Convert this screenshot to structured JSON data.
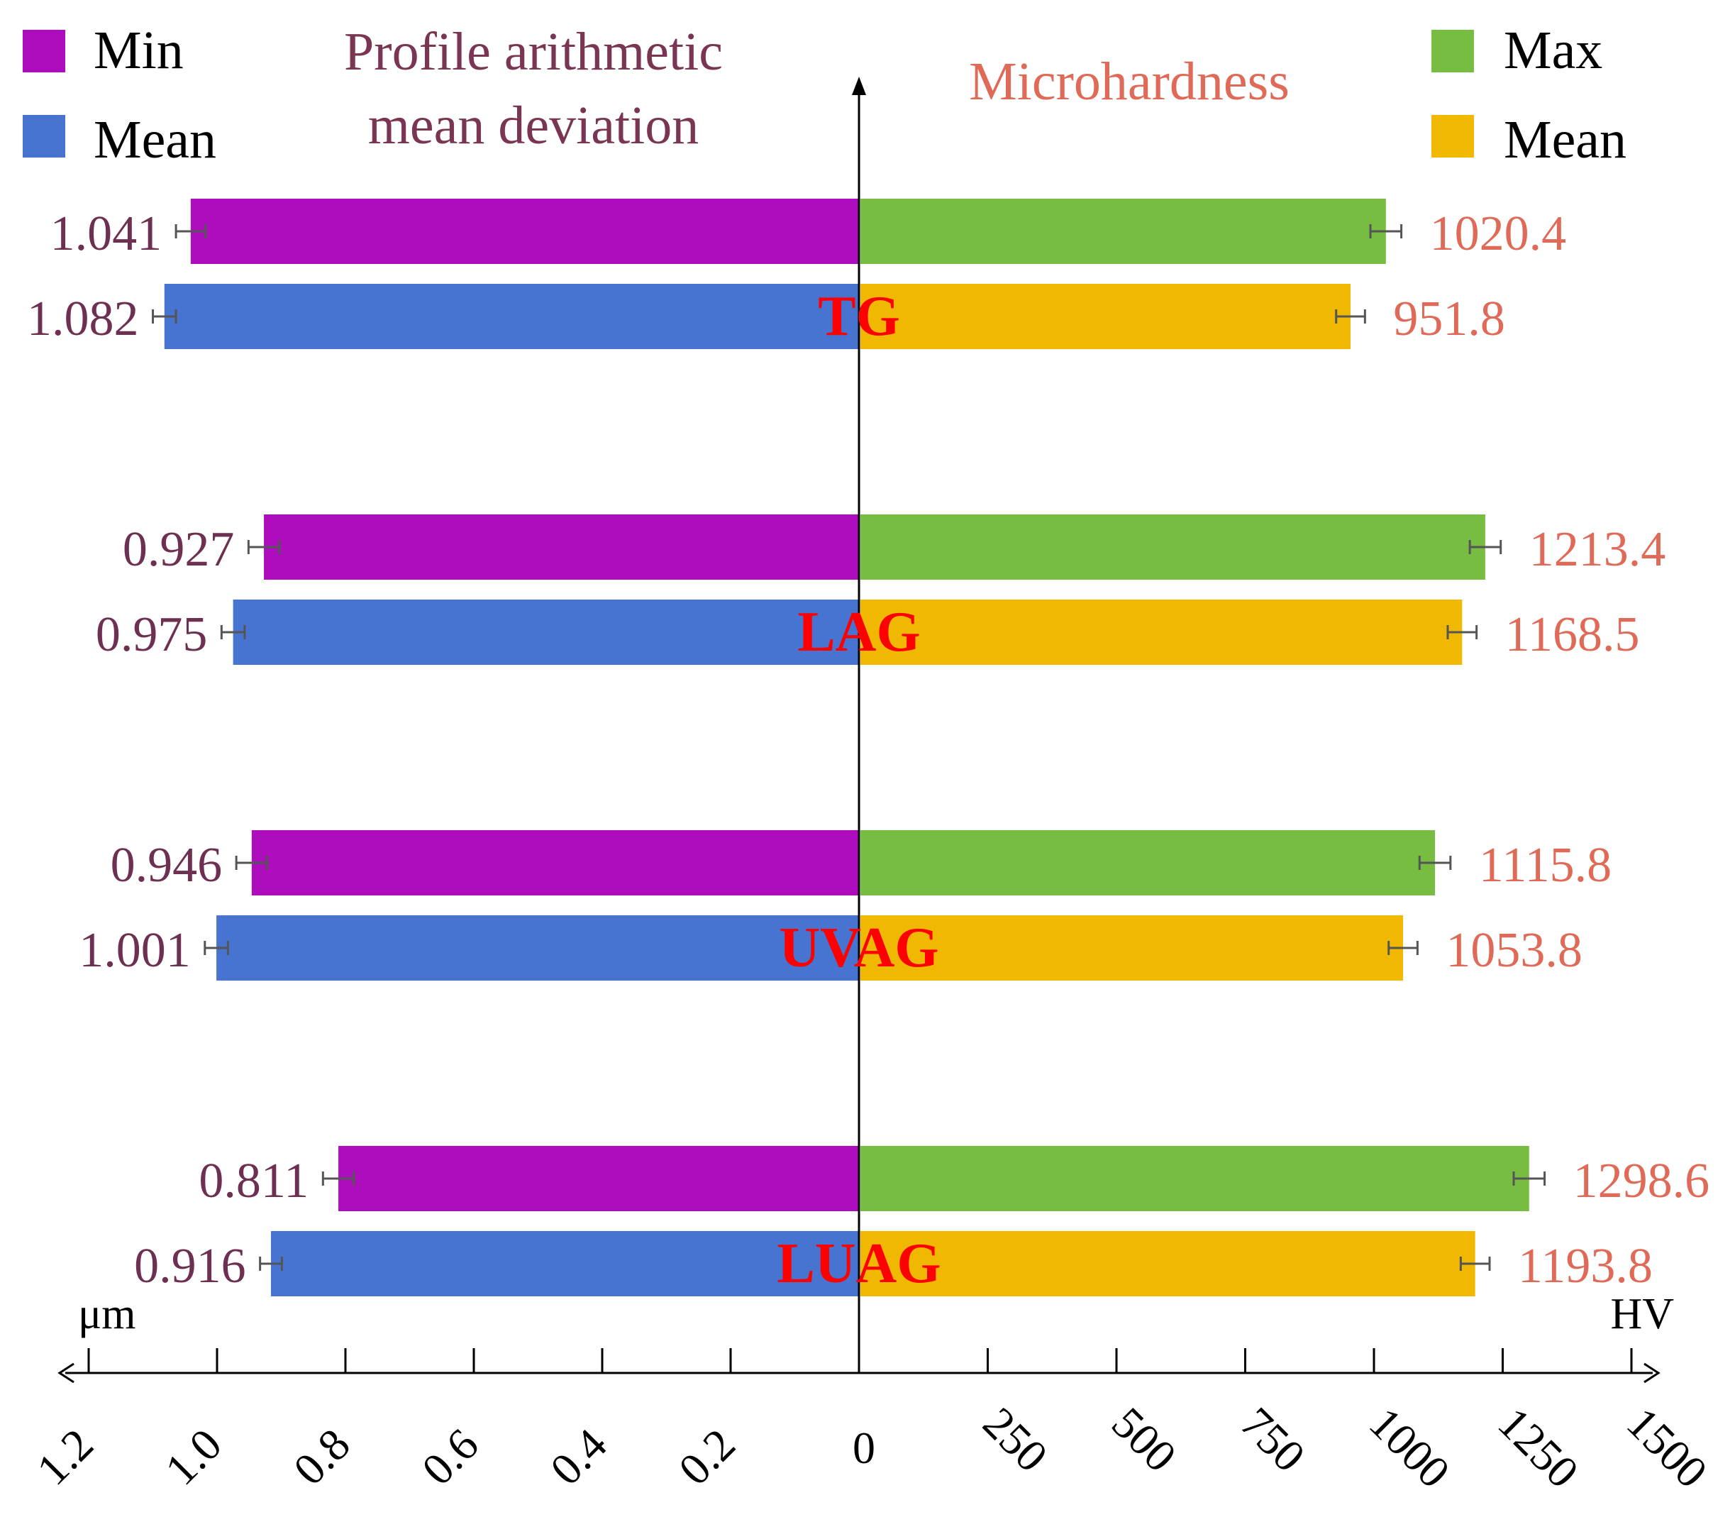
{
  "chart_data": {
    "type": "bar",
    "orientation": "horizontal-butterfly",
    "categories": [
      "TG",
      "LAG",
      "UVAG",
      "LUAG"
    ],
    "left": {
      "title_lines": [
        "Profile arithmetic",
        "mean deviation"
      ],
      "unit": "μm",
      "xlim": [
        0,
        1.2
      ],
      "ticks": [
        0,
        0.2,
        0.4,
        0.6,
        0.8,
        1.0,
        1.2
      ],
      "tick_labels": [
        "0.2",
        "0.4",
        "0.6",
        "0.8",
        "1.0",
        "1.2"
      ],
      "series": [
        {
          "name": "Min",
          "color": "#ad0dbd",
          "values": [
            1.041,
            0.927,
            0.946,
            0.811
          ],
          "labels": [
            "1.041",
            "0.927",
            "0.946",
            "0.811"
          ],
          "errors": [
            0.023,
            0.024,
            0.024,
            0.024
          ]
        },
        {
          "name": "Mean",
          "color": "#4674d0",
          "values": [
            1.082,
            0.975,
            1.001,
            0.916
          ],
          "labels": [
            "1.082",
            "0.975",
            "1.001",
            "0.916"
          ],
          "errors": [
            0.018,
            0.018,
            0.018,
            0.017
          ]
        }
      ],
      "title_color": "#7a3552",
      "label_color": "#6e3050"
    },
    "right": {
      "title": "Microhardness",
      "unit": "HV",
      "xlim": [
        0,
        1500
      ],
      "ticks": [
        0,
        250,
        500,
        750,
        1000,
        1250,
        1500
      ],
      "tick_labels": [
        "250",
        "500",
        "750",
        "1000",
        "1250",
        "1500"
      ],
      "zero_label": "0",
      "series": [
        {
          "name": "Max",
          "color": "#76bd41",
          "values": [
            1020.4,
            1213.4,
            1115.8,
            1298.6
          ],
          "labels": [
            "1020.4",
            "1213.4",
            "1115.8",
            "1298.6"
          ],
          "errors": [
            30,
            30,
            30,
            30
          ]
        },
        {
          "name": "Mean",
          "color": "#f0b800",
          "values": [
            951.8,
            1168.5,
            1053.8,
            1193.8
          ],
          "labels": [
            "951.8",
            "1168.5",
            "1053.8",
            "1193.8"
          ],
          "errors": [
            28,
            28,
            28,
            28
          ]
        }
      ],
      "title_color": "#e06a58",
      "label_color": "#e06a58"
    },
    "category_label_color": "#ff0000"
  }
}
